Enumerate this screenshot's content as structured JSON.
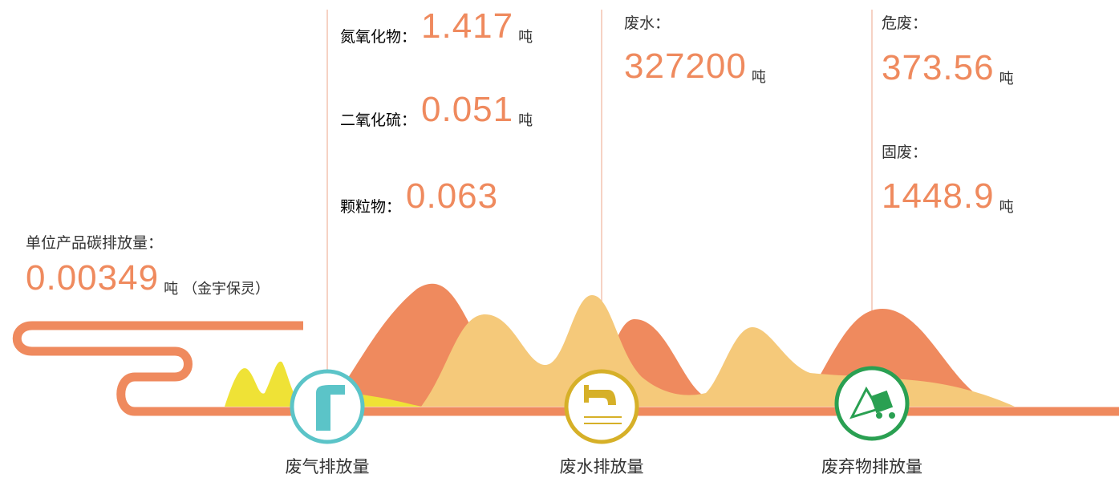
{
  "carbon": {
    "label": "单位产品碳排放量：",
    "value": "0.00349",
    "unit": "吨",
    "note": "（金宇保灵）"
  },
  "gas": {
    "caption": "废气排放量",
    "items": [
      {
        "label": "氮氧化物：",
        "value": "1.417",
        "unit": "吨"
      },
      {
        "label": "二氧化硫：",
        "value": "0.051",
        "unit": "吨"
      },
      {
        "label": "颗粒物：",
        "value": "0.063"
      }
    ]
  },
  "water": {
    "caption": "废水排放量",
    "items": [
      {
        "label": "废水：",
        "value": "327200",
        "unit": "吨"
      }
    ]
  },
  "waste": {
    "caption": "废弃物排放量",
    "items": [
      {
        "label": "危废：",
        "value": "373.56",
        "unit": "吨"
      },
      {
        "label": "固废：",
        "value": "1448.9",
        "unit": "吨"
      }
    ]
  }
}
